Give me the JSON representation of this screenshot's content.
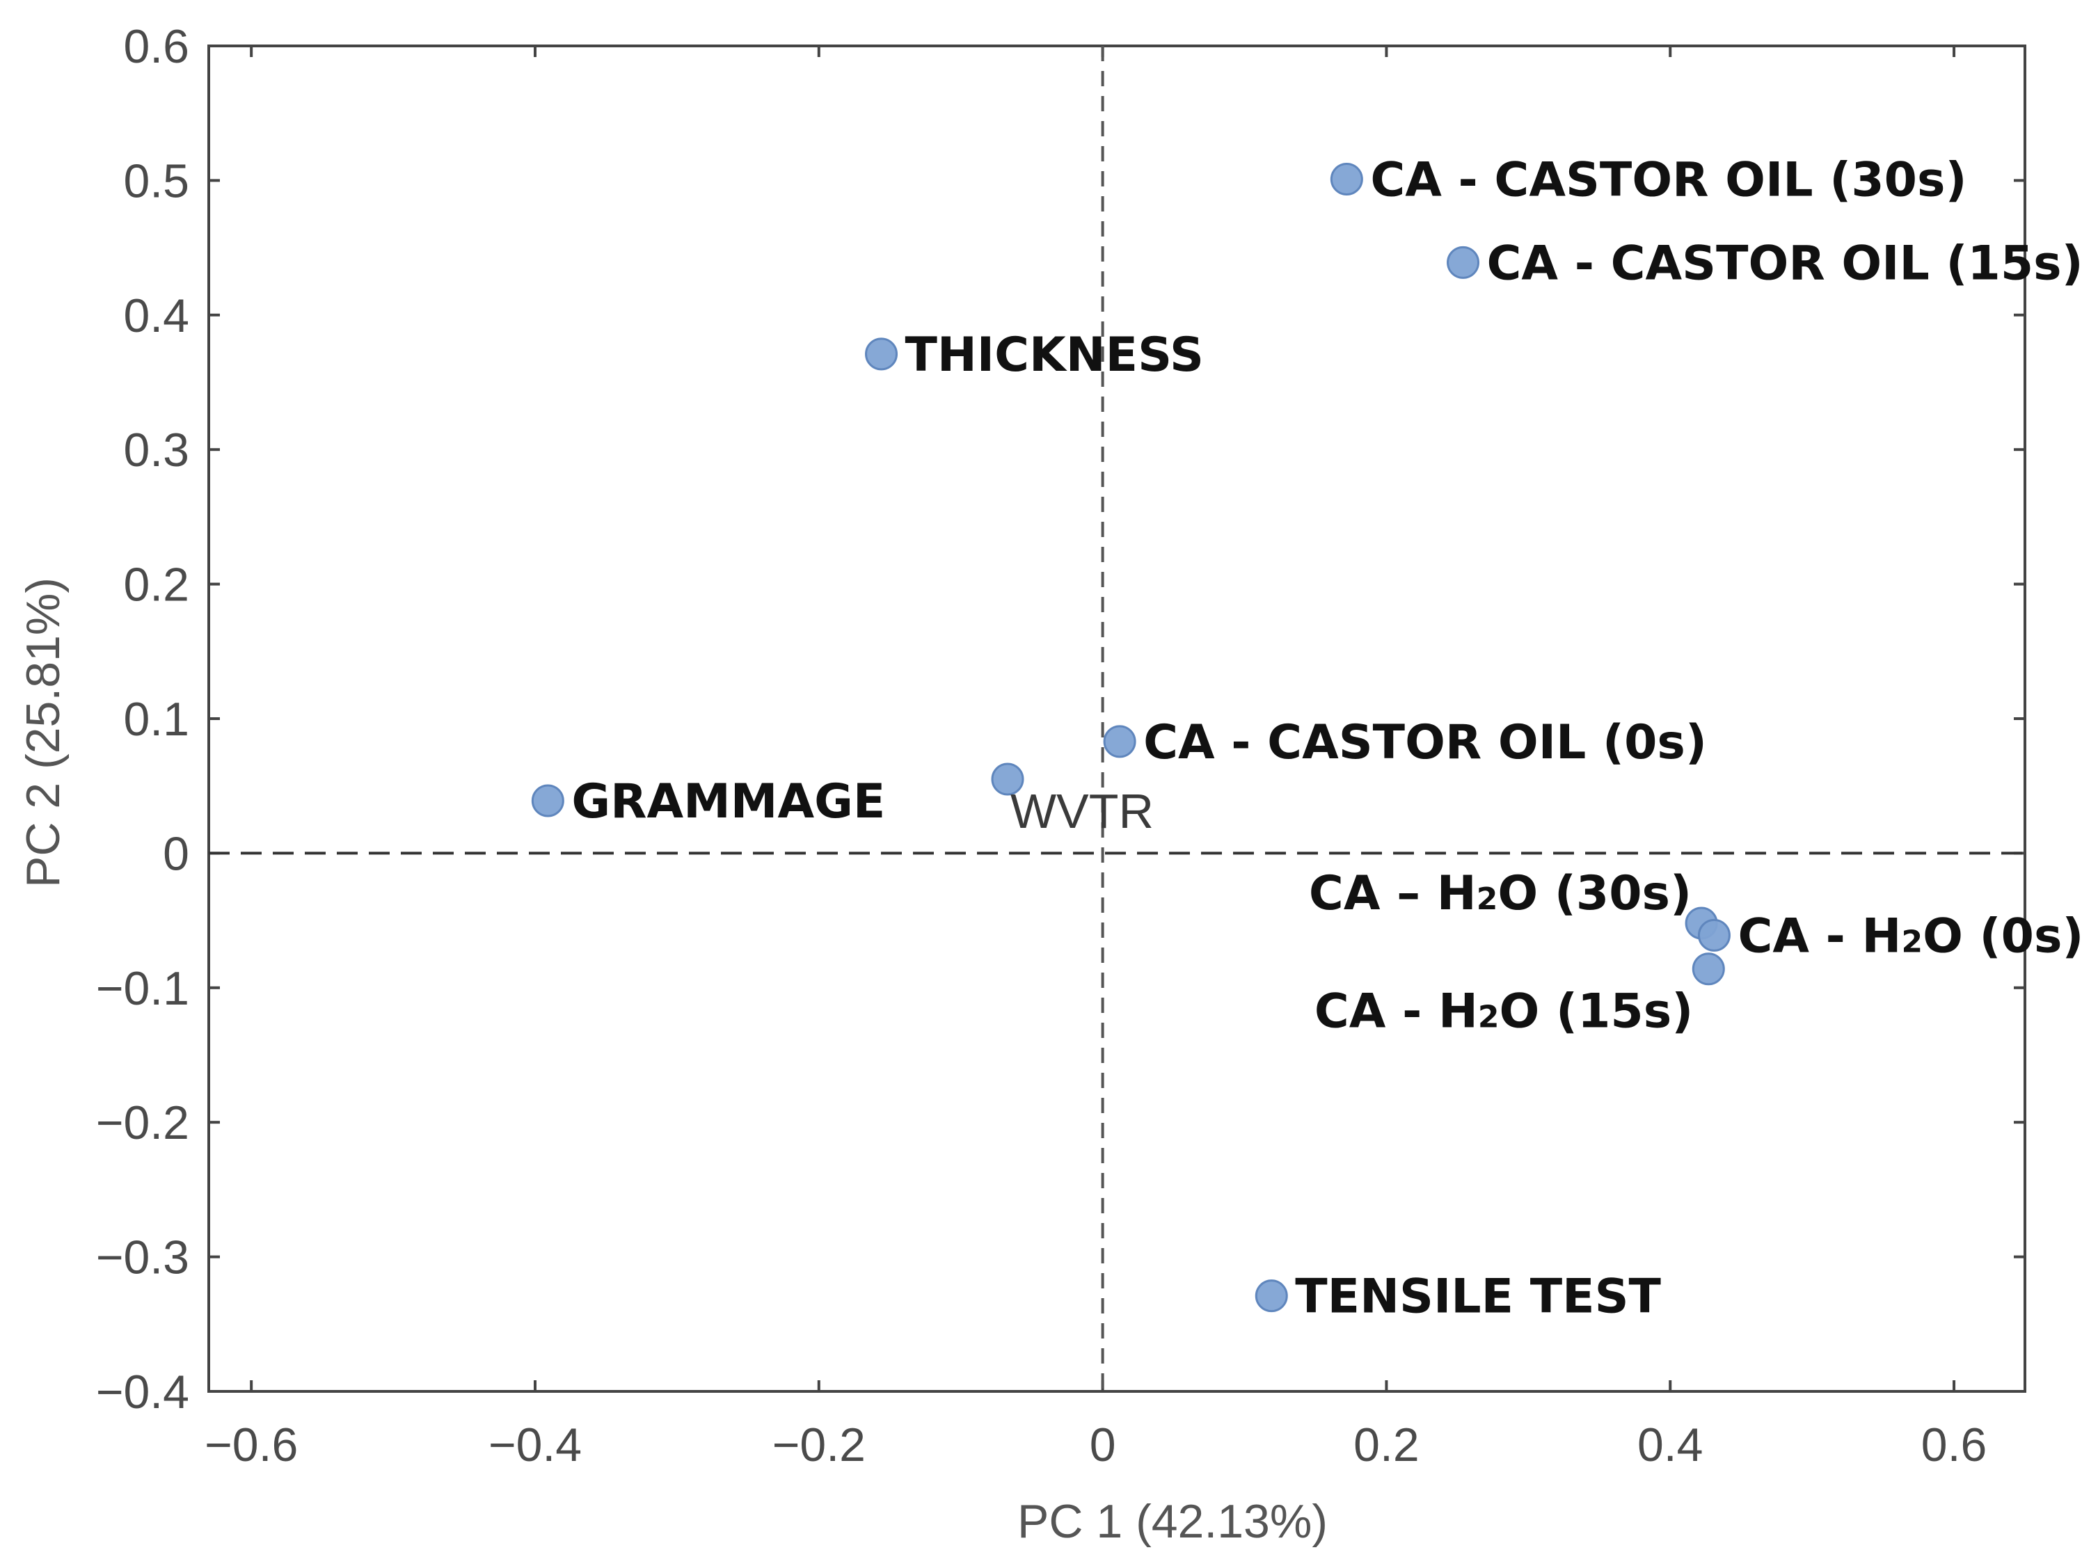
{
  "chart_data": {
    "type": "scatter",
    "title": "",
    "xlabel": "PC 1 (42.13%)",
    "ylabel": "PC 2 (25.81%)",
    "xlim": [
      -0.63,
      0.65
    ],
    "ylim": [
      -0.4,
      0.6
    ],
    "x_ticks": [
      -0.6,
      -0.4,
      -0.2,
      0,
      0.2,
      0.4,
      0.6
    ],
    "x_tick_labels": [
      "−0.6",
      "−0.4",
      "−0.2",
      "0",
      "0.2",
      "0.4",
      "0.6"
    ],
    "y_ticks": [
      0.6,
      0.5,
      0.4,
      0.3,
      0.2,
      0.1,
      0,
      -0.1,
      -0.2,
      -0.3,
      -0.4
    ],
    "y_tick_labels": [
      "0.6",
      "0.5",
      "0.4",
      "0.3",
      "0.2",
      "0.1",
      "0",
      "−0.1",
      "−0.2",
      "−0.3",
      "−0.4"
    ],
    "reference_lines": [
      "x = 0 (dashed)",
      "y = 0 (dashed)"
    ],
    "marker_color": "#7fa3d4",
    "points": [
      {
        "name": "ca-castor-30s",
        "label": "CA - CASTOR OIL (30s)",
        "x": 0.172,
        "y": 0.501,
        "label_anchor": "right",
        "style": "bold"
      },
      {
        "name": "ca-castor-15s",
        "label": "CA - CASTOR OIL (15s)",
        "x": 0.254,
        "y": 0.439,
        "label_anchor": "right",
        "style": "bold"
      },
      {
        "name": "thickness",
        "label": "THICKNESS",
        "x": -0.156,
        "y": 0.371,
        "label_anchor": "right",
        "style": "bold"
      },
      {
        "name": "ca-castor-0s",
        "label": "CA - CASTOR OIL (0s)",
        "x": 0.012,
        "y": 0.083,
        "label_anchor": "right",
        "style": "bold"
      },
      {
        "name": "grammage",
        "label": "GRAMMAGE",
        "x": -0.391,
        "y": 0.039,
        "label_anchor": "right",
        "style": "bold"
      },
      {
        "name": "wvtr",
        "label": "WVTR",
        "x": -0.067,
        "y": 0.055,
        "label_anchor": "below-right",
        "style": "plain"
      },
      {
        "name": "ca-h2o-30s",
        "label": "CA – H2O (30s)",
        "x": 0.422,
        "y": -0.052,
        "label_anchor": "upper-left",
        "style": "bold"
      },
      {
        "name": "ca-h2o-0s",
        "label": "CA - H2O (0s)",
        "x": 0.431,
        "y": -0.061,
        "label_anchor": "right",
        "style": "bold"
      },
      {
        "name": "ca-h2o-15s",
        "label": "CA - H2O (15s)",
        "x": 0.427,
        "y": -0.086,
        "label_anchor": "lower-left",
        "style": "bold"
      },
      {
        "name": "tensile-test",
        "label": "TENSILE TEST",
        "x": 0.119,
        "y": -0.329,
        "label_anchor": "right",
        "style": "bold"
      }
    ]
  }
}
